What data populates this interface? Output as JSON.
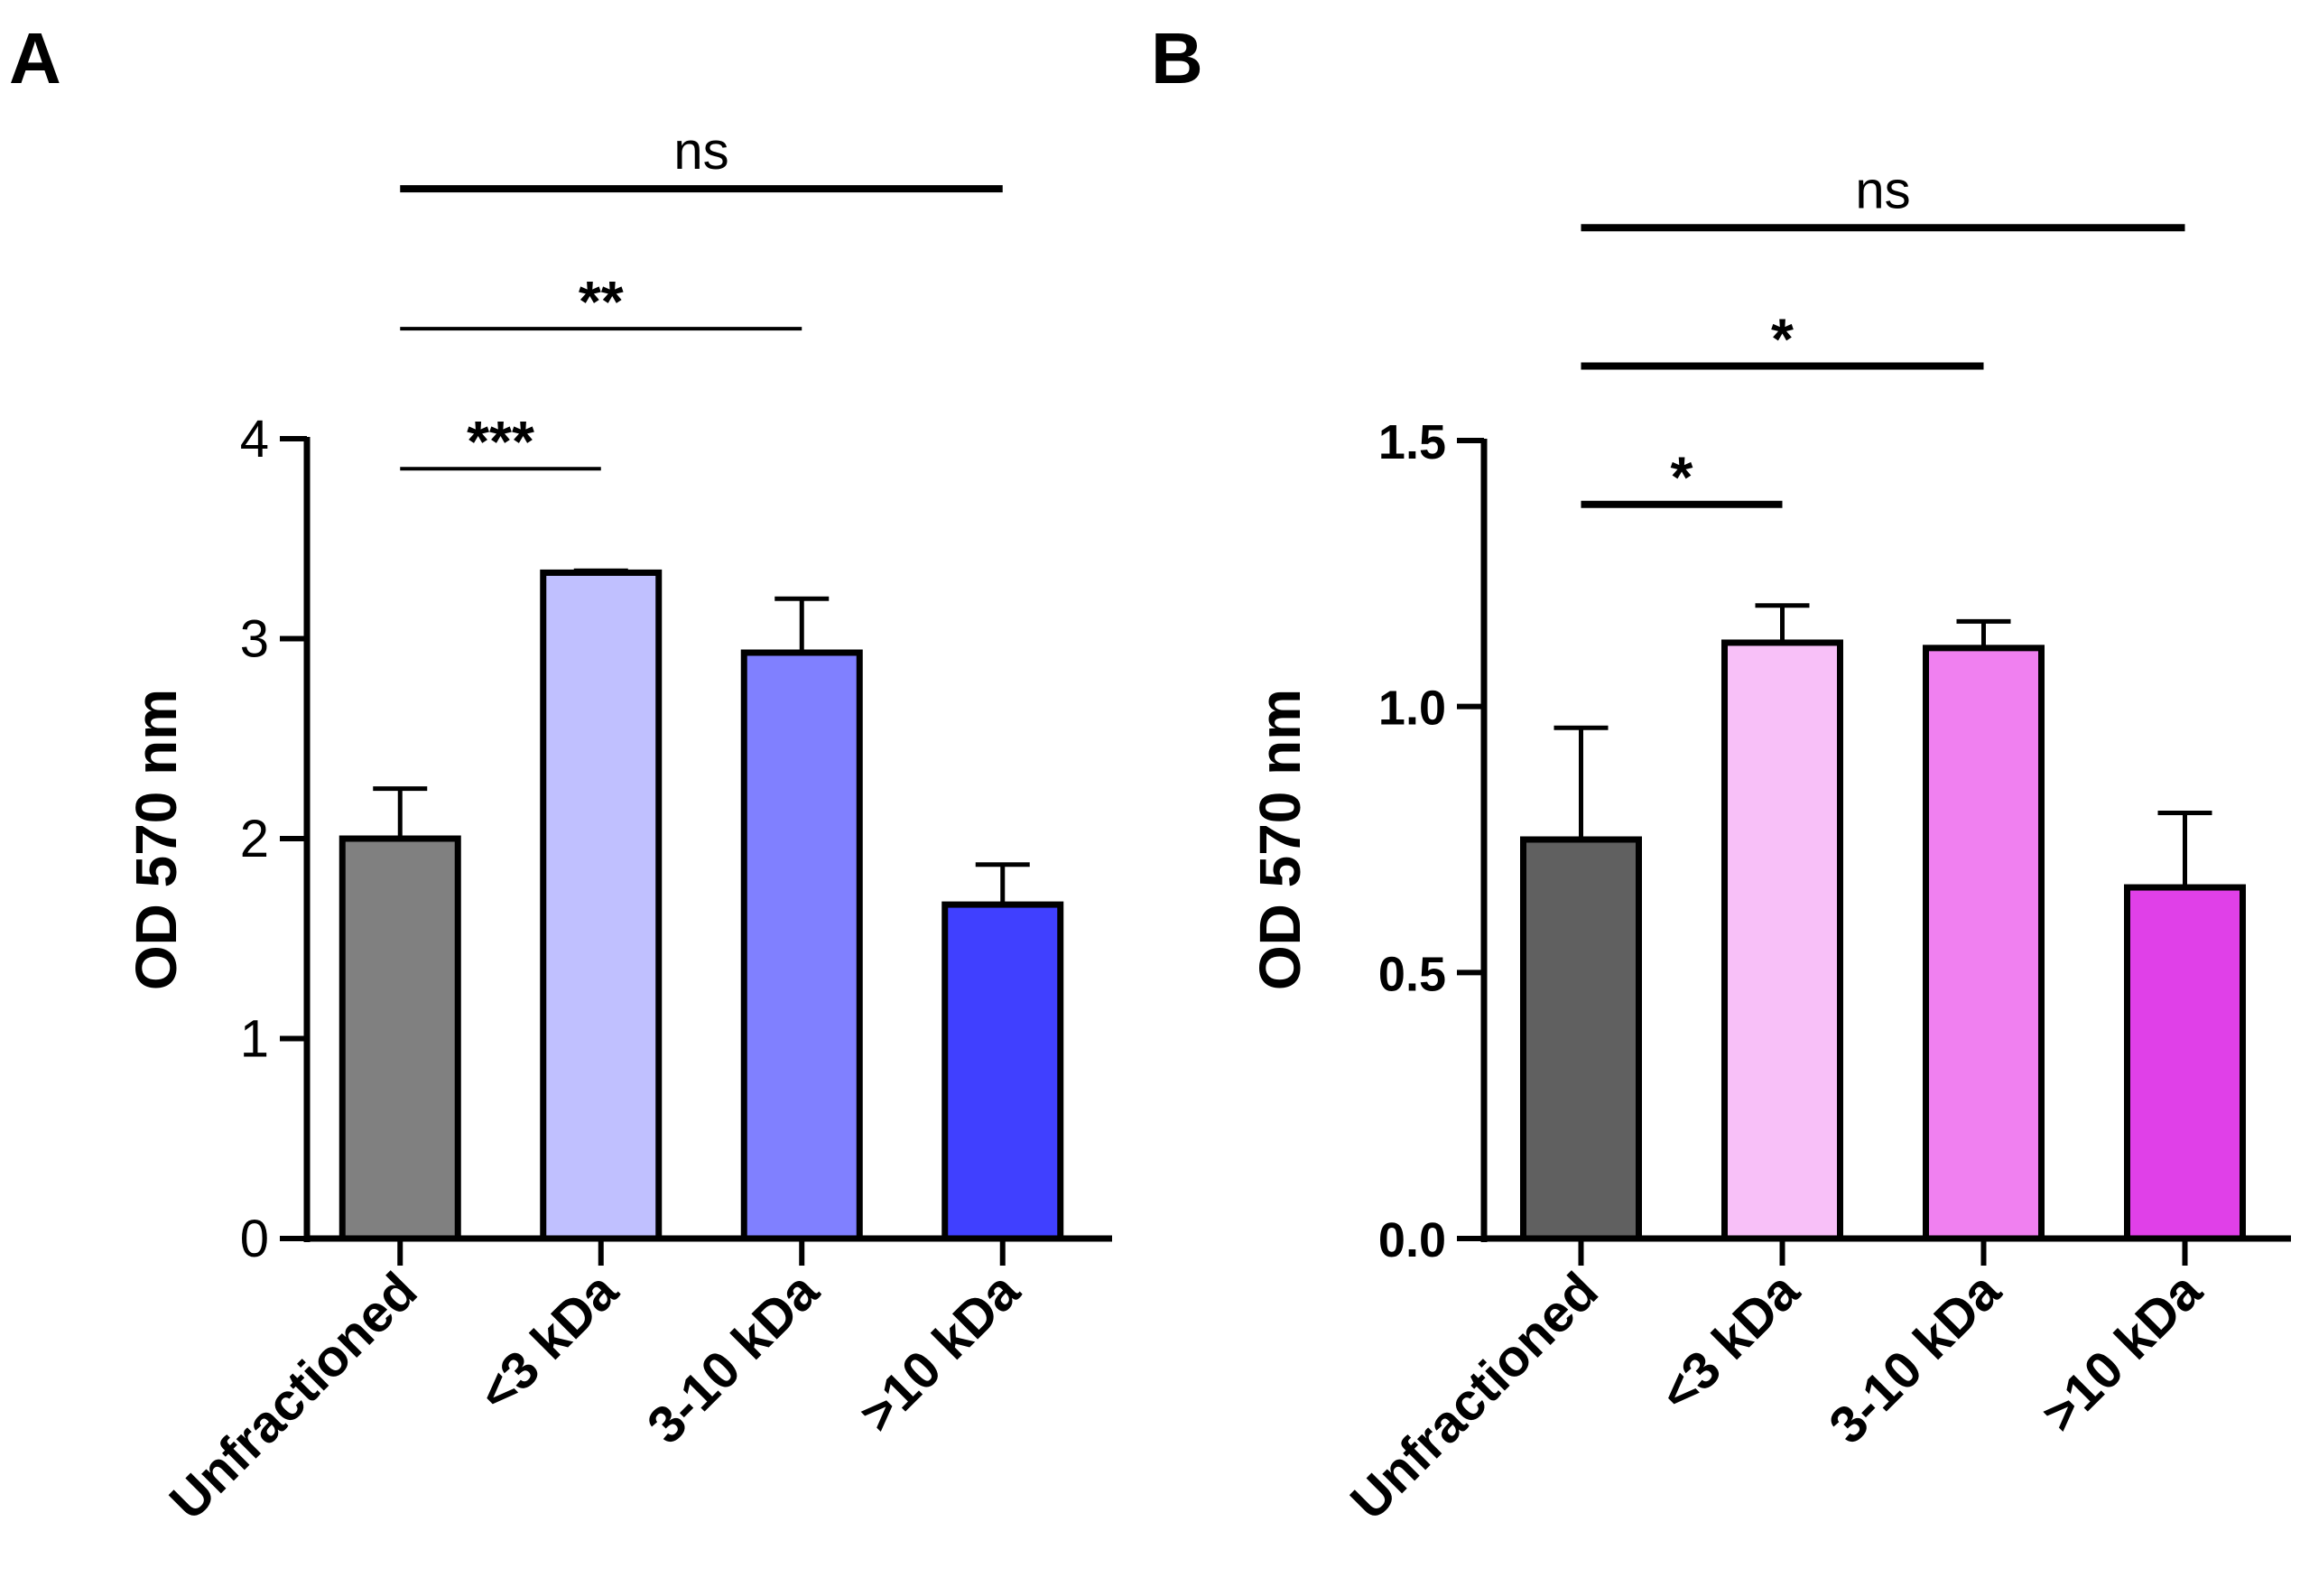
{
  "chart_data": [
    {
      "panel": "A",
      "type": "bar",
      "title": "",
      "xlabel": "",
      "ylabel": "OD 570 nm",
      "ylim": [
        0,
        4
      ],
      "yticks": [
        0,
        1,
        2,
        3,
        4
      ],
      "ytick_labels": [
        "0",
        "1",
        "2",
        "3",
        "4"
      ],
      "categories": [
        "Unfractioned",
        "<3 kDa",
        "3-10 kDa",
        ">10 kDa"
      ],
      "values": [
        2.0,
        3.33,
        2.93,
        1.67
      ],
      "errors": [
        0.25,
        0.01,
        0.27,
        0.2
      ],
      "colors": [
        "#808080",
        "#c0c0ff",
        "#8080ff",
        "#4040ff"
      ],
      "significance": [
        {
          "from": 0,
          "to": 1,
          "label": "***",
          "y": 3.85
        },
        {
          "from": 0,
          "to": 2,
          "label": "**",
          "y": 4.55
        },
        {
          "from": 0,
          "to": 3,
          "label": "ns",
          "y": 5.25
        }
      ]
    },
    {
      "panel": "B",
      "type": "bar",
      "title": "",
      "xlabel": "",
      "ylabel": "OD 570 nm",
      "ylim": [
        0,
        1.5
      ],
      "yticks": [
        0,
        0.5,
        1.0,
        1.5
      ],
      "ytick_labels": [
        "0.0",
        "0.5",
        "1.0",
        "1.5"
      ],
      "categories": [
        "Unfractioned",
        "<3 kDa",
        "3-10 kDa",
        ">10 kDa"
      ],
      "values": [
        0.75,
        1.12,
        1.11,
        0.66
      ],
      "errors": [
        0.21,
        0.07,
        0.05,
        0.14
      ],
      "colors": [
        "#606060",
        "#f8c0f8",
        "#f080f0",
        "#e040e8"
      ],
      "significance": [
        {
          "from": 0,
          "to": 1,
          "label": "*",
          "y": 1.38
        },
        {
          "from": 0,
          "to": 2,
          "label": "*",
          "y": 1.64
        },
        {
          "from": 0,
          "to": 3,
          "label": "ns",
          "y": 1.9
        }
      ]
    }
  ]
}
